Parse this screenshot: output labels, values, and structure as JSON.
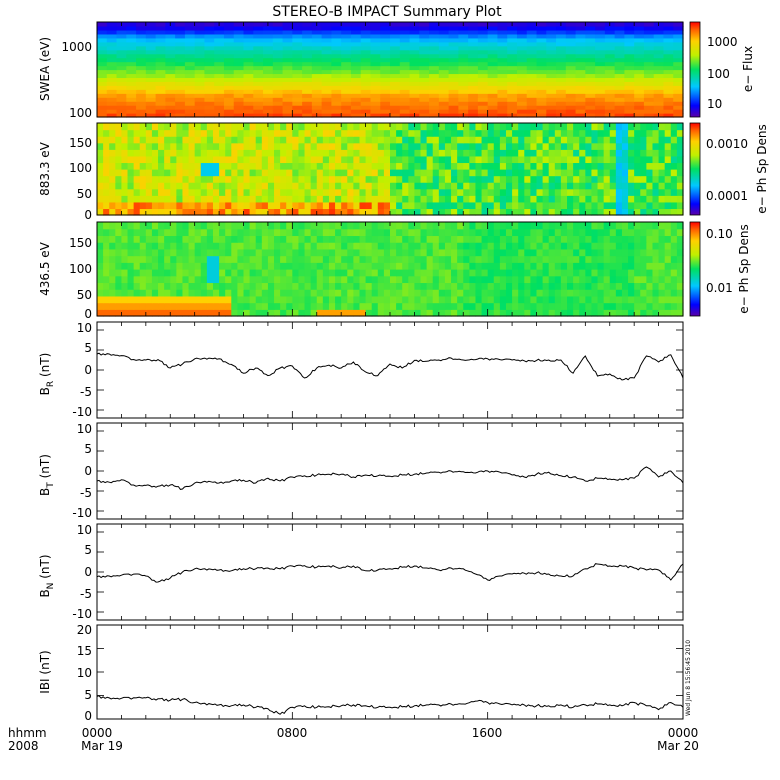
{
  "title": "STEREO-B IMPACT Summary Plot",
  "time_axis": {
    "row1_label": "hhmm",
    "row2_label": "2008",
    "ticks": [
      {
        "hour": 0,
        "time": "0000",
        "date": "Mar 19"
      },
      {
        "hour": 8,
        "time": "0800",
        "date": ""
      },
      {
        "hour": 16,
        "time": "1600",
        "date": ""
      },
      {
        "hour": 24,
        "time": "0000",
        "date": "Mar 20"
      }
    ]
  },
  "timestamp_text": "Wed Jun 8 15:56:45 2010",
  "chart_data": [
    {
      "type": "heatmap",
      "id": "swea",
      "ylabel": "SWEA (eV)",
      "ylog": true,
      "ylim": [
        100,
        2000
      ],
      "ytick_labels": [
        "100",
        "1000"
      ],
      "colorbar": {
        "label": "e− Flux",
        "log": true,
        "range": [
          2,
          4000
        ],
        "tick_labels": [
          "10",
          "100",
          "1000"
        ]
      },
      "levels_at_energy": [
        [
          100,
          0.95
        ],
        [
          200,
          0.85
        ],
        [
          400,
          0.6
        ],
        [
          700,
          0.45
        ],
        [
          1200,
          0.3
        ],
        [
          1600,
          0.12
        ],
        [
          2000,
          0.05
        ]
      ]
    },
    {
      "type": "heatmap",
      "id": "pad883",
      "ylabel": "883.3 eV",
      "ylim": [
        0,
        180
      ],
      "ytick_labels": [
        "0",
        "50",
        "100",
        "150"
      ],
      "colorbar": {
        "label": "e− Ph Sp Dens",
        "log": true,
        "range": [
          2e-05,
          0.002
        ],
        "tick_labels": [
          "0.0001",
          "0.0010"
        ]
      }
    },
    {
      "type": "heatmap",
      "id": "pad436",
      "ylabel": "436.5 eV",
      "ylim": [
        0,
        180
      ],
      "ytick_labels": [
        "0",
        "50",
        "100",
        "150"
      ],
      "colorbar": {
        "label": "e− Ph Sp Dens",
        "log": true,
        "range": [
          0.002,
          0.12
        ],
        "tick_labels": [
          "0.01",
          "0.10"
        ]
      }
    },
    {
      "type": "line",
      "id": "br",
      "ylabel_main": "B",
      "ylabel_sub": "R",
      "ylabel_tail": " (nT)",
      "ylim": [
        -12,
        12
      ],
      "ytick_labels": [
        "-10",
        "-5",
        "0",
        "5",
        "10"
      ],
      "x": [
        0.0,
        0.5,
        1.0,
        1.6,
        2.0,
        2.5,
        3.0,
        3.5,
        4.0,
        4.5,
        5.0,
        5.5,
        6.0,
        6.5,
        7.0,
        7.5,
        8.0,
        8.5,
        9.0,
        9.5,
        10.0,
        10.5,
        11.0,
        11.5,
        12.0,
        12.5,
        13.0,
        13.5,
        14.0,
        14.5,
        15.0,
        15.5,
        16.0,
        16.5,
        17.0,
        17.5,
        18.0,
        18.5,
        19.0,
        19.5,
        20.0,
        20.5,
        21.0,
        21.5,
        22.0,
        22.5,
        23.0,
        23.5,
        24.0
      ],
      "y": [
        4,
        4,
        3.6,
        2.4,
        2.5,
        2.6,
        0.5,
        1.5,
        2.8,
        2.7,
        2.8,
        1.4,
        -0.8,
        0.5,
        -1.4,
        0.5,
        1,
        -2,
        0.5,
        1.2,
        0.5,
        2,
        -0.5,
        -1.4,
        1.5,
        0.5,
        2.4,
        2.2,
        2.5,
        3,
        2.5,
        2.6,
        2.8,
        2.6,
        2.5,
        2.3,
        2.4,
        2.5,
        2.5,
        -0.8,
        3.5,
        -1.5,
        -1,
        -2.5,
        -2,
        3.5,
        2,
        3.8,
        -2
      ]
    },
    {
      "type": "line",
      "id": "bt",
      "ylabel_main": "B",
      "ylabel_sub": "T",
      "ylabel_tail": " (nT)",
      "ylim": [
        -12,
        12
      ],
      "ytick_labels": [
        "-10",
        "-5",
        "0",
        "5",
        "10"
      ],
      "x": [
        0.0,
        0.5,
        1.0,
        1.6,
        2.0,
        2.5,
        3.0,
        3.5,
        4.0,
        4.5,
        5.0,
        5.5,
        6.0,
        6.5,
        7.0,
        7.5,
        8.0,
        8.5,
        9.0,
        9.5,
        10.0,
        10.5,
        11.0,
        11.5,
        12.0,
        12.5,
        13.0,
        13.5,
        14.0,
        14.5,
        15.0,
        15.5,
        16.0,
        16.5,
        17.0,
        17.5,
        18.0,
        18.5,
        19.0,
        19.5,
        20.0,
        20.5,
        21.0,
        21.5,
        22.0,
        22.5,
        23.0,
        23.5,
        24.0
      ],
      "y": [
        -2.5,
        -2.8,
        -2.2,
        -3.8,
        -3.6,
        -3.8,
        -3.5,
        -4.5,
        -3,
        -2.8,
        -3,
        -2.5,
        -2.3,
        -3,
        -1.8,
        -2.5,
        -1.5,
        -1.2,
        -1,
        -0.8,
        -0.8,
        -1.5,
        -1,
        -1.2,
        -1.3,
        -1,
        -0.8,
        -0.5,
        -0.3,
        0,
        -0.2,
        -0.5,
        0,
        -0.3,
        -1,
        -1.5,
        -0.8,
        -0.3,
        -1.2,
        -1.5,
        -2.5,
        -1.8,
        -2,
        -2.2,
        -1.8,
        1,
        -1.5,
        0,
        -3
      ]
    },
    {
      "type": "line",
      "id": "bn",
      "ylabel_main": "B",
      "ylabel_sub": "N",
      "ylabel_tail": " (nT)",
      "ylim": [
        -12,
        12
      ],
      "ytick_labels": [
        "-10",
        "-5",
        "0",
        "5",
        "10"
      ],
      "x": [
        0.0,
        0.5,
        1.0,
        1.6,
        2.0,
        2.5,
        3.0,
        3.5,
        4.0,
        4.5,
        5.0,
        5.5,
        6.0,
        6.5,
        7.0,
        7.5,
        8.0,
        8.5,
        9.0,
        9.5,
        10.0,
        10.5,
        11.0,
        11.5,
        12.0,
        12.5,
        13.0,
        13.5,
        14.0,
        14.5,
        15.0,
        15.5,
        16.0,
        16.5,
        17.0,
        17.5,
        18.0,
        18.5,
        19.0,
        19.5,
        20.0,
        20.5,
        21.0,
        21.5,
        22.0,
        22.5,
        23.0,
        23.5,
        24.0
      ],
      "y": [
        -1.2,
        -1,
        -0.8,
        -0.5,
        -1,
        -2.5,
        -1.5,
        0,
        0.8,
        0.5,
        0.5,
        0.3,
        0.8,
        0.8,
        1,
        0.8,
        1.5,
        1.6,
        1.2,
        1.5,
        1,
        1.5,
        0.3,
        0.5,
        0.8,
        1.2,
        1.5,
        1,
        0.5,
        1,
        0.8,
        -0.5,
        -2,
        -1,
        -0.5,
        -0.3,
        -0.2,
        -0.5,
        -1,
        -1,
        0.8,
        2,
        1.5,
        1.5,
        1,
        0.5,
        0.5,
        -2,
        2
      ]
    },
    {
      "type": "line",
      "id": "bmag",
      "ylabel_main": "IBI (nT)",
      "ylim": [
        0,
        20
      ],
      "ytick_labels": [
        "0",
        "5",
        "10",
        "15",
        "20"
      ],
      "x": [
        0.0,
        0.5,
        1.0,
        1.6,
        2.0,
        2.5,
        3.0,
        3.5,
        4.0,
        4.5,
        5.0,
        5.5,
        6.0,
        6.5,
        7.0,
        7.5,
        8.0,
        8.5,
        9.0,
        9.5,
        10.0,
        10.5,
        11.0,
        11.5,
        12.0,
        12.5,
        13.0,
        13.5,
        14.0,
        14.5,
        15.0,
        15.5,
        16.0,
        16.5,
        17.0,
        17.5,
        18.0,
        18.5,
        19.0,
        19.5,
        20.0,
        20.5,
        21.0,
        21.5,
        22.0,
        22.5,
        23.0,
        23.5,
        24.0
      ],
      "y": [
        4.8,
        4.5,
        4.4,
        4.5,
        4.5,
        4.3,
        4,
        4.2,
        3.5,
        3,
        3,
        2.8,
        3,
        2.5,
        2.2,
        1,
        2.5,
        2.8,
        2.5,
        2.6,
        2.8,
        3,
        2.8,
        2.5,
        2.5,
        2.6,
        2.8,
        3,
        3,
        3.2,
        3.2,
        3.8,
        3.5,
        3.2,
        3,
        3,
        2.8,
        2.8,
        3,
        2.5,
        3,
        3.2,
        3,
        2.8,
        3.5,
        2.8,
        2,
        3.5,
        2.5
      ]
    }
  ]
}
